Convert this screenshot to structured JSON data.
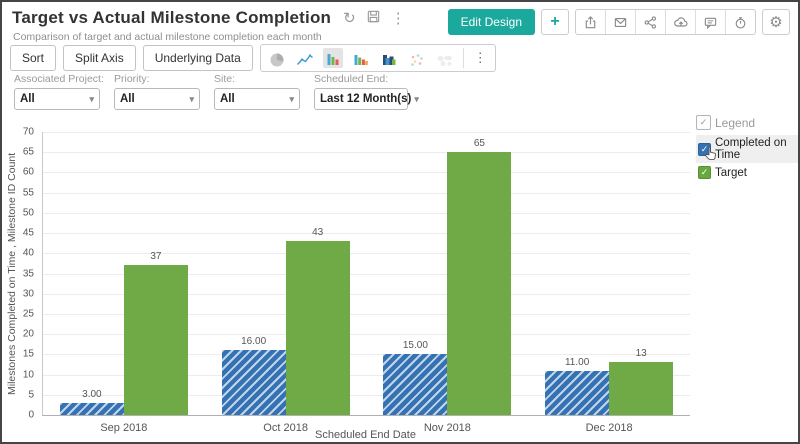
{
  "header": {
    "title": "Target vs Actual Milestone Completion",
    "subtitle": "Comparison of target and actual milestone completion each month",
    "edit_design_label": "Edit Design"
  },
  "icons": {
    "refresh": "↻",
    "kebab": "⋮",
    "gear": "⚙",
    "plus": "+",
    "caret": "▾",
    "check": "✓",
    "action_icons": [
      "export-icon",
      "mail-icon",
      "share-icon",
      "cloud-upload-icon",
      "comment-icon",
      "alarm-icon"
    ],
    "chart_type_icons": [
      "pie-chart-icon",
      "line-chart-icon",
      "column-chart-icon",
      "bar-chart-icon",
      "overlap-bar-chart-icon",
      "scatter-plot-icon",
      "map-chart-icon"
    ]
  },
  "toolbar": {
    "buttons": [
      "Sort",
      "Split Axis",
      "Underlying Data"
    ],
    "selected_chart_type": "column-chart-icon"
  },
  "filters": [
    {
      "label": "Associated Project:",
      "value": "All"
    },
    {
      "label": "Priority:",
      "value": "All"
    },
    {
      "label": "Site:",
      "value": "All"
    },
    {
      "label": "Scheduled End:",
      "value": "Last 12 Month(s)"
    }
  ],
  "legend": {
    "title": "Legend",
    "items": [
      {
        "label": "Completed on Time",
        "color": "#3572b4",
        "checked": true,
        "hovered": true
      },
      {
        "label": "Target",
        "color": "#67a83f",
        "checked": true,
        "hovered": false
      }
    ]
  },
  "chart_data": {
    "type": "bar",
    "categories": [
      "Sep 2018",
      "Oct 2018",
      "Nov 2018",
      "Dec 2018"
    ],
    "series": [
      {
        "name": "Completed on Time",
        "values": [
          3,
          16,
          15,
          11
        ],
        "labels": [
          "3.00",
          "16.00",
          "15.00",
          "11.00"
        ],
        "color": "#3572b4",
        "pattern": "diagonal-hatch"
      },
      {
        "name": "Target",
        "values": [
          37,
          43,
          65,
          13
        ],
        "labels": [
          "37",
          "43",
          "65",
          "13"
        ],
        "color": "#6faa47",
        "pattern": "solid"
      }
    ],
    "xlabel": "Scheduled End Date",
    "ylabel": "Milestones Completed on Time , Milestone ID Count",
    "ylim": [
      0,
      70
    ],
    "ytick_step": 5,
    "grid": true,
    "legend_position": "right"
  },
  "colors": {
    "accent": "#1aa99c",
    "bar_blue": "#3572b4",
    "bar_green": "#6faa47"
  }
}
